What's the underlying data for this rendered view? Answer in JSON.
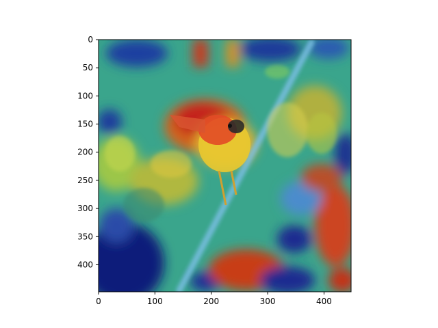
{
  "chart_data": {
    "type": "heatmap",
    "title": "",
    "xlabel": "",
    "ylabel": "",
    "xlim": [
      0,
      448
    ],
    "ylim": [
      448,
      0
    ],
    "x_ticks": [
      0,
      100,
      200,
      300,
      400
    ],
    "y_ticks": [
      0,
      50,
      100,
      150,
      200,
      250,
      300,
      350,
      400
    ],
    "grid": false,
    "colormap": "jet",
    "image": "Grad-CAM style saliency overlay on a photo of a small bird with a red head and yellow body perched among leaves on a diagonal branch; strongest activation (red) around the bird's head and upper body, blue background regions",
    "hot_regions": [
      {
        "label": "bird-head",
        "intensity": 1.0
      },
      {
        "label": "bird-body",
        "intensity": 0.8
      },
      {
        "label": "bottom-center",
        "intensity": 0.95
      },
      {
        "label": "right-edge-bottom",
        "intensity": 0.9
      }
    ]
  },
  "colors": {
    "axis": "#000000",
    "background": "#ffffff"
  }
}
